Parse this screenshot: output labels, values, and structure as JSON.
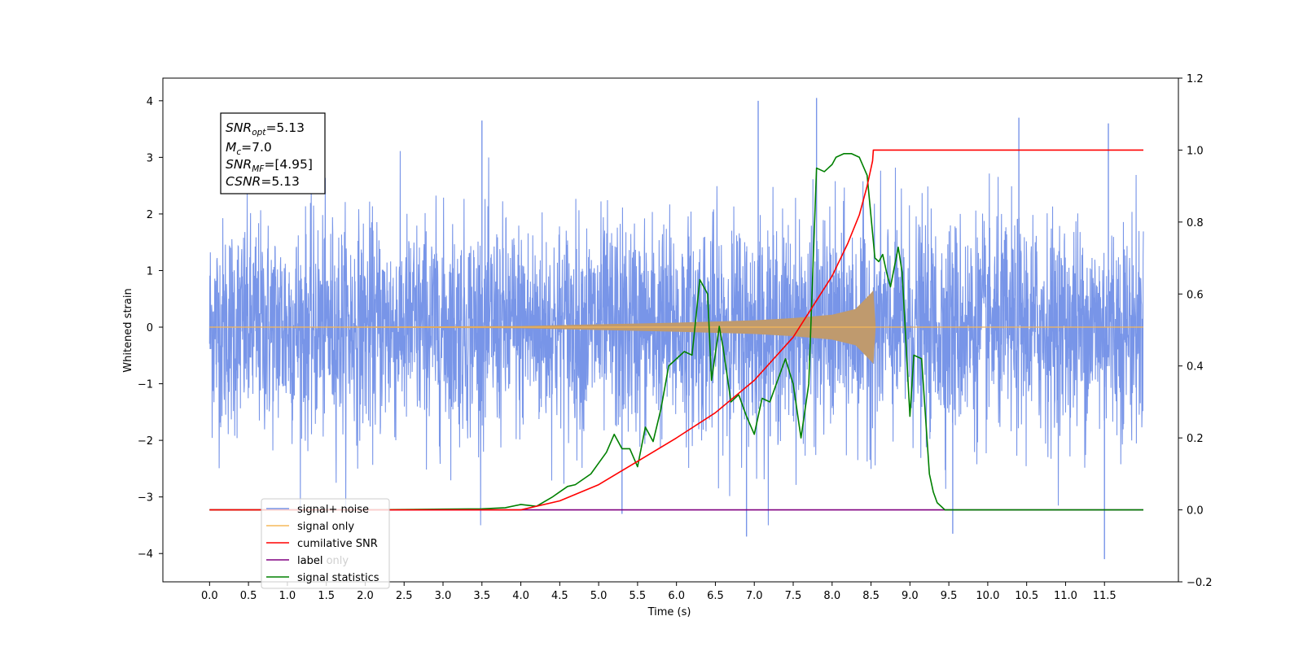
{
  "chart_data": {
    "type": "line",
    "xlabel": "Time (s)",
    "ylabel": "Whitened strain",
    "y2label": "",
    "xlim": [
      -0.6,
      12.45
    ],
    "ylim": [
      -4.5,
      4.4
    ],
    "y2lim": [
      -0.2,
      1.2
    ],
    "grid": false,
    "legend_placement": "lower-left",
    "x_ticks": [
      "0.0",
      "0.5",
      "1.0",
      "1.5",
      "2.0",
      "2.5",
      "3.0",
      "3.5",
      "4.0",
      "4.5",
      "5.0",
      "5.5",
      "6.0",
      "6.5",
      "7.0",
      "7.5",
      "8.0",
      "8.5",
      "9.0",
      "9.5",
      "10.0",
      "10.5",
      "11.0",
      "11.5"
    ],
    "y_ticks": [
      "4",
      "3",
      "2",
      "1",
      "0",
      "−1",
      "−2",
      "−3",
      "−4"
    ],
    "y2_ticks": [
      "1.2",
      "1.0",
      "0.8",
      "0.6",
      "0.4",
      "0.2",
      "0.0",
      "−0.2"
    ],
    "annotation": {
      "lines": [
        {
          "sym": "SNR",
          "sub": "opt",
          "value": "=5.13"
        },
        {
          "sym": "M",
          "sub": "c",
          "value": "=7.0"
        },
        {
          "sym": "SNR",
          "sub": "MF",
          "value": "=[4.95]"
        },
        {
          "sym": "CSNR",
          "sub": "",
          "value": "=5.13"
        }
      ]
    },
    "series": [
      {
        "name": "signal+ noise",
        "axis": "left",
        "color": "#7895e8",
        "description_range": [
          0,
          12
        ],
        "noise_amplitude_typical": 2.0,
        "peaks": [
          [
            3.5,
            3.65
          ],
          [
            7.05,
            4.0
          ],
          [
            7.8,
            4.05
          ],
          [
            10.4,
            3.7
          ],
          [
            11.55,
            3.6
          ],
          [
            6.9,
            -3.7
          ],
          [
            11.5,
            -4.1
          ],
          [
            9.55,
            -3.65
          ],
          [
            5.3,
            -3.3
          ]
        ]
      },
      {
        "name": "signal only",
        "axis": "left",
        "color": "#f5b85a",
        "envelope": [
          [
            0,
            0.0
          ],
          [
            4.0,
            0.02
          ],
          [
            5.0,
            0.05
          ],
          [
            6.0,
            0.08
          ],
          [
            7.0,
            0.12
          ],
          [
            7.5,
            0.16
          ],
          [
            8.0,
            0.22
          ],
          [
            8.3,
            0.32
          ],
          [
            8.5,
            0.6
          ],
          [
            8.53,
            0.65
          ],
          [
            8.56,
            0.0
          ],
          [
            12.0,
            0.0
          ]
        ]
      },
      {
        "name": "cumilative SNR",
        "axis": "right",
        "color": "#ff0000",
        "x": [
          0,
          1,
          2,
          3,
          3.5,
          4.0,
          4.5,
          5.0,
          5.5,
          6.0,
          6.5,
          7.0,
          7.5,
          8.0,
          8.2,
          8.35,
          8.45,
          8.52,
          8.53,
          12.0
        ],
        "y": [
          0.0,
          0.0,
          0.0,
          0.0,
          0.0,
          0.0,
          0.025,
          0.07,
          0.135,
          0.2,
          0.27,
          0.36,
          0.48,
          0.65,
          0.74,
          0.82,
          0.9,
          0.97,
          1.0,
          1.0
        ]
      },
      {
        "name": "label",
        "axis": "right",
        "color": "#800080",
        "x": [
          0,
          12
        ],
        "y": [
          0.0,
          0.0
        ]
      },
      {
        "name": "label only",
        "axis": "right",
        "color": "#cccccc",
        "x": [],
        "y": []
      },
      {
        "name": "signal statistics",
        "axis": "right",
        "color": "#008000",
        "x": [
          0,
          2.0,
          3.0,
          3.5,
          3.8,
          4.0,
          4.2,
          4.4,
          4.5,
          4.6,
          4.7,
          4.8,
          4.9,
          5.0,
          5.1,
          5.2,
          5.3,
          5.4,
          5.5,
          5.6,
          5.7,
          5.8,
          5.9,
          6.0,
          6.1,
          6.2,
          6.3,
          6.4,
          6.45,
          6.55,
          6.6,
          6.7,
          6.8,
          6.9,
          7.0,
          7.1,
          7.2,
          7.3,
          7.4,
          7.5,
          7.6,
          7.7,
          7.8,
          7.9,
          8.0,
          8.05,
          8.15,
          8.25,
          8.35,
          8.45,
          8.55,
          8.6,
          8.65,
          8.7,
          8.75,
          8.85,
          8.9,
          8.95,
          9.0,
          9.05,
          9.15,
          9.25,
          9.3,
          9.35,
          9.45,
          9.55,
          9.7,
          10.0,
          12.0
        ],
        "y": [
          0.0,
          0.0,
          0.002,
          0.003,
          0.006,
          0.015,
          0.01,
          0.035,
          0.05,
          0.065,
          0.07,
          0.085,
          0.1,
          0.13,
          0.16,
          0.21,
          0.17,
          0.17,
          0.12,
          0.23,
          0.19,
          0.28,
          0.4,
          0.42,
          0.44,
          0.43,
          0.64,
          0.6,
          0.36,
          0.51,
          0.45,
          0.3,
          0.32,
          0.26,
          0.21,
          0.31,
          0.3,
          0.36,
          0.42,
          0.35,
          0.2,
          0.35,
          0.95,
          0.94,
          0.96,
          0.98,
          0.99,
          0.99,
          0.98,
          0.93,
          0.7,
          0.69,
          0.71,
          0.66,
          0.62,
          0.73,
          0.66,
          0.46,
          0.26,
          0.43,
          0.42,
          0.1,
          0.05,
          0.02,
          0.0,
          0.0,
          0.0,
          0.0,
          0.0
        ]
      }
    ]
  },
  "colors": {
    "signal_noise": "#7895e8",
    "signal_only": "#f5b85a",
    "cumulative_snr": "#ff0000",
    "label": "#800080",
    "signal_statistics": "#008000"
  }
}
